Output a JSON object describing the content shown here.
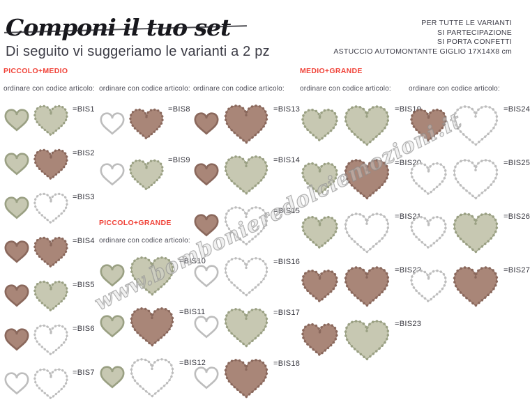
{
  "page": {
    "title": "Componi il tuo set",
    "subtitle": "Di seguito vi suggeriamo le varianti a 2 pz",
    "info_lines": [
      "PER TUTTE LE VARIANTI",
      "SI PARTECIPAZIONE",
      "SI PORTA CONFETTI",
      "ASTUCCIO AUTOMONTANTE GIGLIO 17X14X8 cm"
    ],
    "watermark": "www.bombonieredolciemozioni.it"
  },
  "labels": {
    "order_header": "ordinare con codice articolo:"
  },
  "colors": {
    "accent_red": "#f04238",
    "sage": {
      "fill": "#c7c8b2",
      "stroke": "#9aa083"
    },
    "brown": {
      "fill": "#a98678",
      "stroke": "#8a685c"
    },
    "white": {
      "fill": "#ffffff",
      "stroke": "#bdbdbd"
    }
  },
  "columns": [
    {
      "items": [
        {
          "t": "sec",
          "v": "PICCOLO+MEDIO"
        },
        {
          "t": "hdr"
        },
        {
          "t": "pair",
          "code": "=BIS1",
          "left": {
            "size": "small",
            "color": "sage",
            "style": "plain"
          },
          "right": {
            "size": "medium",
            "color": "sage",
            "style": "scalloped"
          }
        },
        {
          "t": "pair",
          "code": "=BIS2",
          "left": {
            "size": "small",
            "color": "sage",
            "style": "plain"
          },
          "right": {
            "size": "medium",
            "color": "brown",
            "style": "scalloped"
          }
        },
        {
          "t": "pair",
          "code": "=BIS3",
          "left": {
            "size": "small",
            "color": "sage",
            "style": "plain"
          },
          "right": {
            "size": "medium",
            "color": "white",
            "style": "scalloped"
          }
        },
        {
          "t": "pair",
          "code": "=BIS4",
          "left": {
            "size": "small",
            "color": "brown",
            "style": "plain"
          },
          "right": {
            "size": "medium",
            "color": "brown",
            "style": "scalloped"
          }
        },
        {
          "t": "pair",
          "code": "=BIS5",
          "left": {
            "size": "small",
            "color": "brown",
            "style": "plain"
          },
          "right": {
            "size": "medium",
            "color": "sage",
            "style": "scalloped"
          }
        },
        {
          "t": "pair",
          "code": "=BIS6",
          "left": {
            "size": "small",
            "color": "brown",
            "style": "plain"
          },
          "right": {
            "size": "medium",
            "color": "white",
            "style": "scalloped"
          }
        },
        {
          "t": "pair",
          "code": "=BIS7",
          "left": {
            "size": "small",
            "color": "white",
            "style": "plain"
          },
          "right": {
            "size": "medium",
            "color": "white",
            "style": "scalloped"
          }
        }
      ]
    },
    {
      "items": [
        {
          "t": "gap",
          "h": 26
        },
        {
          "t": "hdr"
        },
        {
          "t": "pair",
          "code": "=BIS8",
          "left": {
            "size": "small",
            "color": "white",
            "style": "plain"
          },
          "right": {
            "size": "medium",
            "color": "brown",
            "style": "scalloped"
          }
        },
        {
          "t": "pair",
          "code": "=BIS9",
          "left": {
            "size": "small",
            "color": "white",
            "style": "plain"
          },
          "right": {
            "size": "medium",
            "color": "sage",
            "style": "scalloped"
          }
        },
        {
          "t": "gap",
          "h": 28
        },
        {
          "t": "sec",
          "v": "PICCOLO+GRANDE"
        },
        {
          "t": "hdr"
        },
        {
          "t": "pair",
          "code": "=BIS10",
          "left": {
            "size": "small",
            "color": "sage",
            "style": "plain"
          },
          "right": {
            "size": "large",
            "color": "sage",
            "style": "scalloped"
          }
        },
        {
          "t": "pair",
          "code": "=BIS11",
          "left": {
            "size": "small",
            "color": "sage",
            "style": "plain"
          },
          "right": {
            "size": "large",
            "color": "brown",
            "style": "scalloped"
          }
        },
        {
          "t": "pair",
          "code": "=BIS12",
          "left": {
            "size": "small",
            "color": "sage",
            "style": "plain"
          },
          "right": {
            "size": "large",
            "color": "white",
            "style": "scalloped"
          }
        }
      ]
    },
    {
      "items": [
        {
          "t": "gap",
          "h": 26
        },
        {
          "t": "hdr"
        },
        {
          "t": "pair",
          "code": "=BIS13",
          "left": {
            "size": "small",
            "color": "brown",
            "style": "plain"
          },
          "right": {
            "size": "large",
            "color": "brown",
            "style": "scalloped"
          }
        },
        {
          "t": "pair",
          "code": "=BIS14",
          "left": {
            "size": "small",
            "color": "brown",
            "style": "plain"
          },
          "right": {
            "size": "large",
            "color": "sage",
            "style": "scalloped"
          }
        },
        {
          "t": "pair",
          "code": "=BIS15",
          "left": {
            "size": "small",
            "color": "brown",
            "style": "plain"
          },
          "right": {
            "size": "large",
            "color": "white",
            "style": "scalloped"
          }
        },
        {
          "t": "pair",
          "code": "=BIS16",
          "left": {
            "size": "small",
            "color": "white",
            "style": "plain"
          },
          "right": {
            "size": "large",
            "color": "white",
            "style": "scalloped"
          }
        },
        {
          "t": "pair",
          "code": "=BIS17",
          "left": {
            "size": "small",
            "color": "white",
            "style": "plain"
          },
          "right": {
            "size": "large",
            "color": "sage",
            "style": "scalloped"
          }
        },
        {
          "t": "pair",
          "code": "=BIS18",
          "left": {
            "size": "small",
            "color": "white",
            "style": "plain"
          },
          "right": {
            "size": "large",
            "color": "brown",
            "style": "scalloped"
          }
        }
      ]
    },
    {
      "items": [
        {
          "t": "sec",
          "v": "MEDIO+GRANDE"
        },
        {
          "t": "hdr"
        },
        {
          "t": "pair",
          "code": "=BIS19",
          "left": {
            "size": "medium",
            "color": "sage",
            "style": "scalloped"
          },
          "right": {
            "size": "large",
            "color": "sage",
            "style": "scalloped"
          }
        },
        {
          "t": "pair",
          "code": "=BIS20",
          "left": {
            "size": "medium",
            "color": "sage",
            "style": "scalloped"
          },
          "right": {
            "size": "large",
            "color": "brown",
            "style": "scalloped"
          }
        },
        {
          "t": "pair",
          "code": "=BIS21",
          "left": {
            "size": "medium",
            "color": "sage",
            "style": "scalloped"
          },
          "right": {
            "size": "large",
            "color": "white",
            "style": "scalloped"
          }
        },
        {
          "t": "pair",
          "code": "=BIS22",
          "left": {
            "size": "medium",
            "color": "brown",
            "style": "scalloped"
          },
          "right": {
            "size": "large",
            "color": "brown",
            "style": "scalloped"
          }
        },
        {
          "t": "pair",
          "code": "=BIS23",
          "left": {
            "size": "medium",
            "color": "brown",
            "style": "scalloped"
          },
          "right": {
            "size": "large",
            "color": "sage",
            "style": "scalloped"
          }
        }
      ]
    },
    {
      "items": [
        {
          "t": "gap",
          "h": 26
        },
        {
          "t": "hdr"
        },
        {
          "t": "pair",
          "code": "=BIS24",
          "left": {
            "size": "medium",
            "color": "brown",
            "style": "scalloped"
          },
          "right": {
            "size": "large",
            "color": "white",
            "style": "scalloped"
          }
        },
        {
          "t": "pair",
          "code": "=BIS25",
          "left": {
            "size": "medium",
            "color": "white",
            "style": "scalloped"
          },
          "right": {
            "size": "large",
            "color": "white",
            "style": "scalloped"
          }
        },
        {
          "t": "pair",
          "code": "=BIS26",
          "left": {
            "size": "medium",
            "color": "white",
            "style": "scalloped"
          },
          "right": {
            "size": "large",
            "color": "sage",
            "style": "scalloped"
          }
        },
        {
          "t": "pair",
          "code": "=BIS27",
          "left": {
            "size": "medium",
            "color": "white",
            "style": "scalloped"
          },
          "right": {
            "size": "large",
            "color": "brown",
            "style": "scalloped"
          }
        }
      ]
    }
  ]
}
